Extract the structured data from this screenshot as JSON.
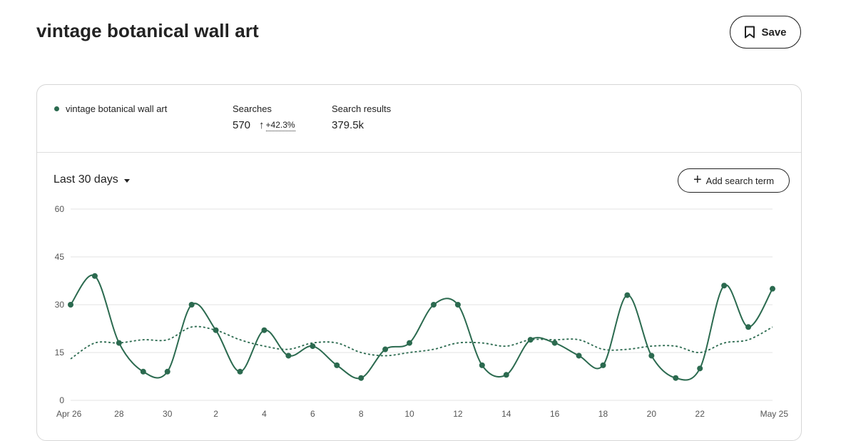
{
  "header": {
    "title": "vintage botanical wall art",
    "save_label": "Save"
  },
  "summary": {
    "term": "vintage botanical wall art",
    "searches_label": "Searches",
    "searches_value": "570",
    "change_arrow": "↑",
    "searches_change": "+42.3%",
    "results_label": "Search results",
    "results_value": "379.5k"
  },
  "controls": {
    "range_label": "Last 30 days",
    "add_term_label": "Add search term"
  },
  "colors": {
    "series": "#2b6a4f",
    "grid": "#e3e3e3"
  },
  "icons": {
    "save": "bookmark-icon",
    "add": "plus-icon",
    "range": "caret-down-icon"
  },
  "chart_data": {
    "type": "line",
    "x": [
      "Apr 26",
      "27",
      "28",
      "29",
      "30",
      "1",
      "2",
      "3",
      "4",
      "5",
      "6",
      "7",
      "8",
      "9",
      "10",
      "11",
      "12",
      "13",
      "14",
      "15",
      "16",
      "17",
      "18",
      "19",
      "20",
      "21",
      "22",
      "23",
      "24",
      "May 25"
    ],
    "xtick_labels": [
      "Apr 26",
      "28",
      "30",
      "2",
      "4",
      "6",
      "8",
      "10",
      "12",
      "14",
      "16",
      "18",
      "20",
      "22",
      "May 25"
    ],
    "series": [
      {
        "values": [
          30,
          39,
          18,
          9,
          9,
          30,
          22,
          9,
          22,
          14,
          17,
          11,
          7,
          16,
          18,
          30,
          30,
          11,
          8,
          19,
          18,
          14,
          11,
          33,
          14,
          7,
          10,
          36,
          23,
          35
        ]
      },
      {
        "values": [
          13,
          18,
          18,
          19,
          19,
          23,
          22,
          19,
          17,
          16,
          18,
          18,
          15,
          14,
          15,
          16,
          18,
          18,
          17,
          19,
          19,
          19,
          16,
          16,
          17,
          17,
          15,
          18,
          19,
          23
        ]
      }
    ],
    "ylim": [
      0,
      60
    ],
    "yticks": [
      0,
      15,
      30,
      45,
      60
    ],
    "grid": true
  }
}
